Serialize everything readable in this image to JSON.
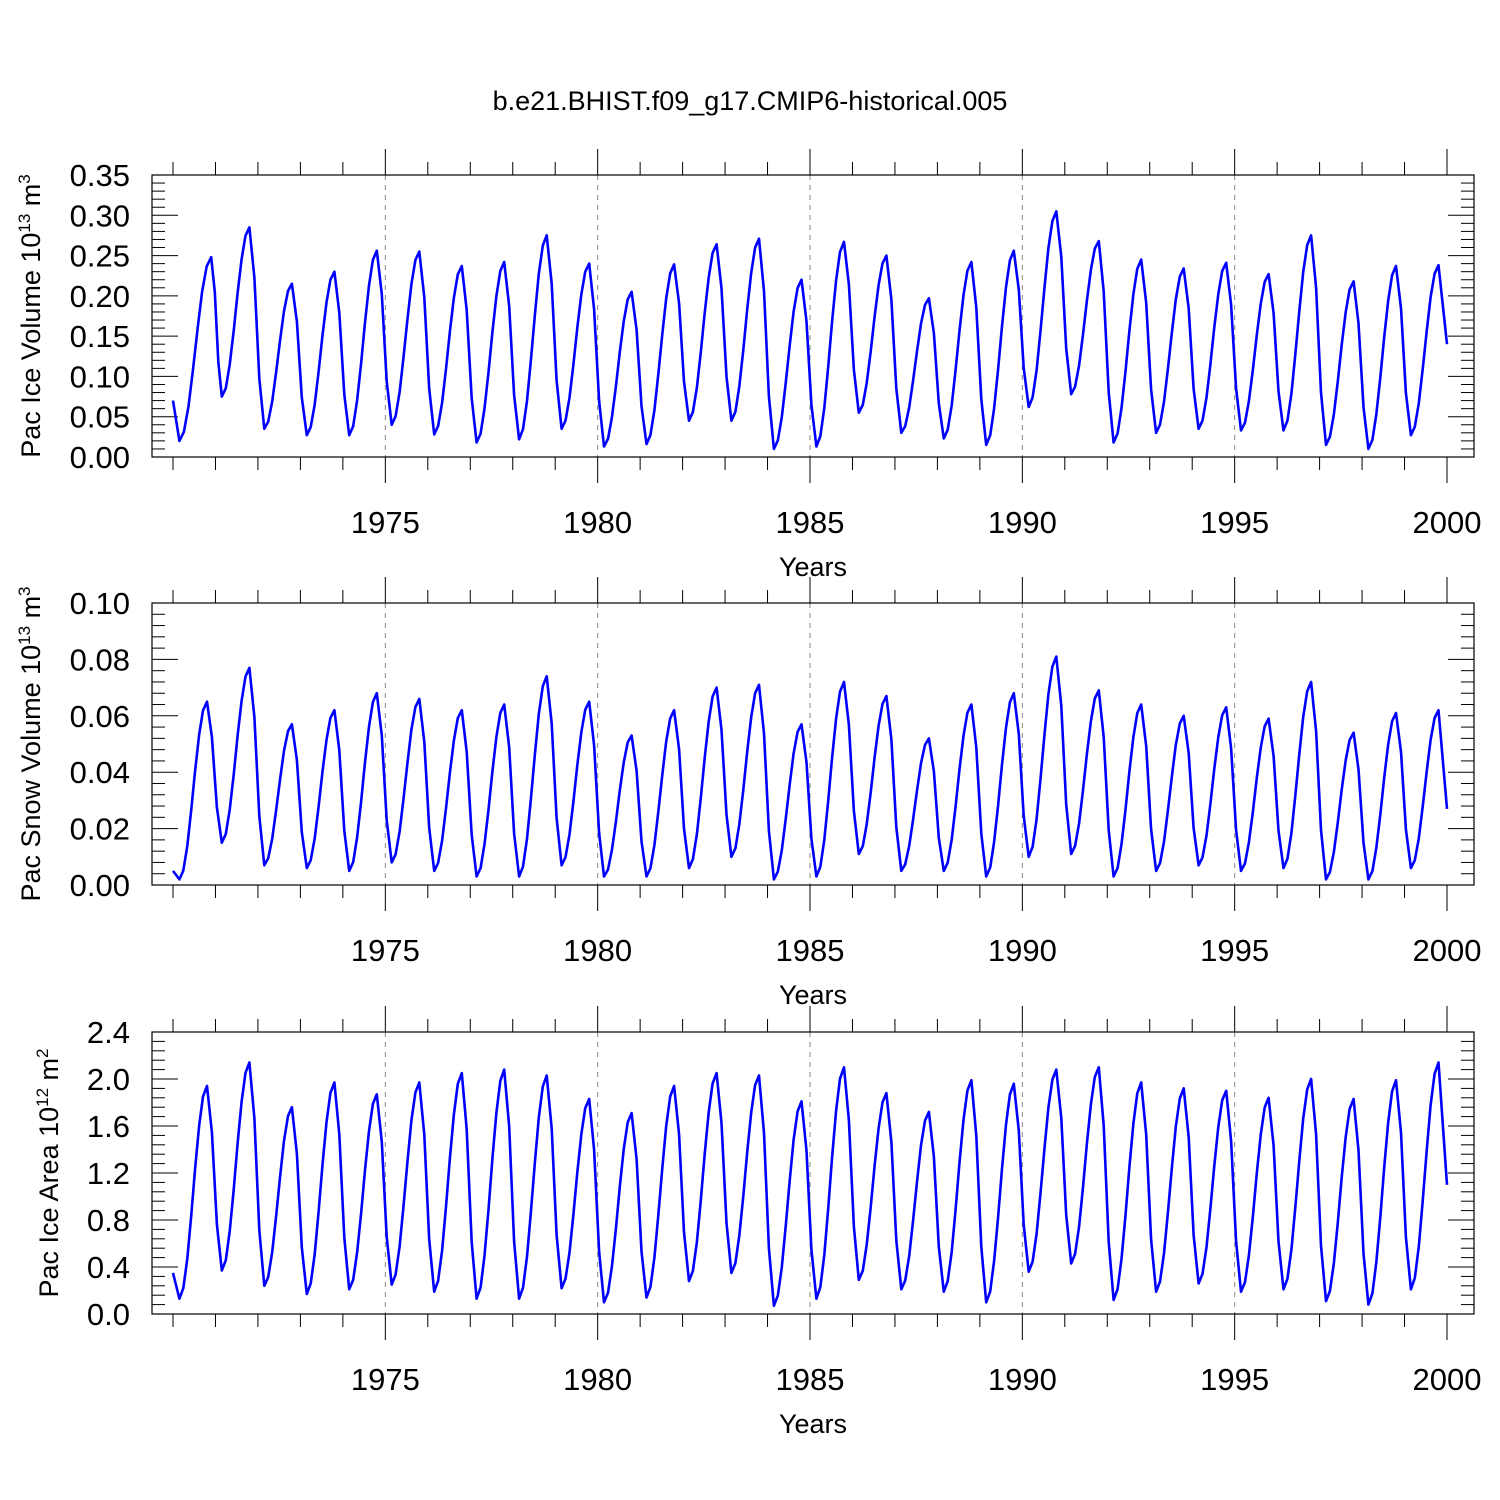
{
  "title": "b.e21.BHIST.f09_g17.CMIP6-historical.005",
  "chart_data": [
    {
      "type": "line",
      "title": "b.e21.BHIST.f09_g17.CMIP6-historical.005",
      "xlabel": "Years",
      "ylabel": "Pac Ice Volume 10",
      "ylabel_exp": "13",
      "ylabel_unit": " m",
      "ylabel_unit_exp": "3",
      "xlim": [
        1970,
        2000
      ],
      "ylim": [
        0,
        0.35
      ],
      "xticks": [
        1975,
        1980,
        1985,
        1990,
        1995,
        2000
      ],
      "yticks": [
        "0.00",
        "0.05",
        "0.10",
        "0.15",
        "0.20",
        "0.25",
        "0.30",
        "0.35"
      ],
      "grid": "dashed vertical lines at 5-year ticks",
      "series": [
        {
          "name": "Pac Ice Volume",
          "color": "#0000ff",
          "peak_years": [
            1970.9,
            1971.8,
            1972.8,
            1973.8,
            1974.8,
            1975.8,
            1976.8,
            1977.8,
            1978.8,
            1979.8,
            1980.8,
            1981.8,
            1982.8,
            1983.8,
            1984.8,
            1985.8,
            1986.8,
            1987.8,
            1988.8,
            1989.8,
            1990.8,
            1991.8,
            1992.8,
            1993.8,
            1994.8,
            1995.8,
            1996.8,
            1997.8,
            1998.8,
            1999.8
          ],
          "peaks": [
            0.248,
            0.285,
            0.215,
            0.23,
            0.256,
            0.255,
            0.237,
            0.242,
            0.275,
            0.24,
            0.205,
            0.239,
            0.264,
            0.271,
            0.22,
            0.267,
            0.25,
            0.197,
            0.242,
            0.256,
            0.305,
            0.268,
            0.245,
            0.234,
            0.241,
            0.227,
            0.275,
            0.218,
            0.237,
            0.238
          ],
          "start_value": 0.07,
          "end_value": 0.14,
          "troughs": [
            0.02,
            0.075,
            0.035,
            0.027,
            0.027,
            0.04,
            0.028,
            0.018,
            0.022,
            0.035,
            0.013,
            0.016,
            0.045,
            0.045,
            0.01,
            0.013,
            0.055,
            0.03,
            0.023,
            0.015,
            0.062,
            0.078,
            0.018,
            0.03,
            0.035,
            0.033,
            0.033,
            0.015,
            0.01,
            0.027
          ]
        }
      ]
    },
    {
      "type": "line",
      "xlabel": "Years",
      "ylabel": "Pac Snow Volume 10",
      "ylabel_exp": "13",
      "ylabel_unit": " m",
      "ylabel_unit_exp": "3",
      "xlim": [
        1970,
        2000
      ],
      "ylim": [
        0,
        0.1
      ],
      "xticks": [
        1975,
        1980,
        1985,
        1990,
        1995,
        2000
      ],
      "yticks": [
        "0.00",
        "0.02",
        "0.04",
        "0.06",
        "0.08",
        "0.10"
      ],
      "grid": "dashed vertical lines at 5-year ticks",
      "series": [
        {
          "name": "Pac Snow Volume",
          "color": "#0000ff",
          "peak_years": [
            1970.8,
            1971.8,
            1972.8,
            1973.8,
            1974.8,
            1975.8,
            1976.8,
            1977.8,
            1978.8,
            1979.8,
            1980.8,
            1981.8,
            1982.8,
            1983.8,
            1984.8,
            1985.8,
            1986.8,
            1987.8,
            1988.8,
            1989.8,
            1990.8,
            1991.8,
            1992.8,
            1993.8,
            1994.8,
            1995.8,
            1996.8,
            1997.8,
            1998.8,
            1999.8
          ],
          "peaks": [
            0.065,
            0.077,
            0.057,
            0.062,
            0.068,
            0.066,
            0.062,
            0.064,
            0.074,
            0.065,
            0.053,
            0.062,
            0.07,
            0.071,
            0.057,
            0.072,
            0.067,
            0.052,
            0.064,
            0.068,
            0.081,
            0.069,
            0.064,
            0.06,
            0.063,
            0.059,
            0.072,
            0.054,
            0.061,
            0.062
          ],
          "start_value": 0.005,
          "end_value": 0.027,
          "troughs": [
            0.002,
            0.015,
            0.007,
            0.006,
            0.005,
            0.008,
            0.005,
            0.003,
            0.003,
            0.007,
            0.003,
            0.003,
            0.006,
            0.01,
            0.002,
            0.003,
            0.011,
            0.005,
            0.005,
            0.003,
            0.01,
            0.011,
            0.003,
            0.005,
            0.007,
            0.005,
            0.006,
            0.002,
            0.002,
            0.006
          ]
        }
      ]
    },
    {
      "type": "line",
      "xlabel": "Years",
      "ylabel": "Pac Ice Area 10",
      "ylabel_exp": "12",
      "ylabel_unit": " m",
      "ylabel_unit_exp": "2",
      "xlim": [
        1970,
        2000
      ],
      "ylim": [
        0,
        2.4
      ],
      "xticks": [
        1975,
        1980,
        1985,
        1990,
        1995,
        2000
      ],
      "yticks": [
        "0.0",
        "0.4",
        "0.8",
        "1.2",
        "1.6",
        "2.0",
        "2.4"
      ],
      "grid": "dashed vertical lines at 5-year ticks",
      "series": [
        {
          "name": "Pac Ice Area",
          "color": "#0000ff",
          "peak_years": [
            1970.8,
            1971.8,
            1972.8,
            1973.8,
            1974.8,
            1975.8,
            1976.8,
            1977.8,
            1978.8,
            1979.8,
            1980.8,
            1981.8,
            1982.8,
            1983.8,
            1984.8,
            1985.8,
            1986.8,
            1987.8,
            1988.8,
            1989.8,
            1990.8,
            1991.8,
            1992.8,
            1993.8,
            1994.8,
            1995.8,
            1996.8,
            1997.8,
            1998.8,
            1999.8
          ],
          "peaks": [
            1.94,
            2.14,
            1.76,
            1.97,
            1.87,
            1.97,
            2.05,
            2.08,
            2.03,
            1.83,
            1.71,
            1.94,
            2.05,
            2.03,
            1.81,
            2.1,
            1.88,
            1.72,
            1.99,
            1.96,
            2.08,
            2.1,
            1.97,
            1.92,
            1.9,
            1.84,
            2.0,
            1.83,
            1.99,
            2.14
          ],
          "start_value": 0.35,
          "end_value": 1.1,
          "troughs": [
            0.13,
            0.37,
            0.24,
            0.17,
            0.21,
            0.25,
            0.19,
            0.13,
            0.13,
            0.22,
            0.1,
            0.14,
            0.28,
            0.35,
            0.07,
            0.13,
            0.29,
            0.21,
            0.19,
            0.1,
            0.36,
            0.43,
            0.12,
            0.19,
            0.26,
            0.19,
            0.21,
            0.11,
            0.08,
            0.21
          ]
        }
      ]
    }
  ]
}
